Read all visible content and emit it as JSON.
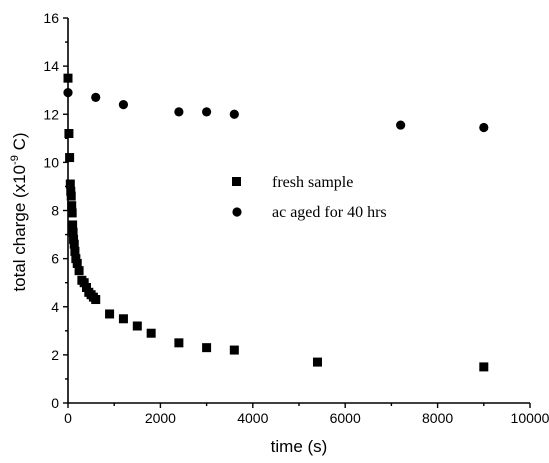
{
  "chart_data": {
    "type": "scatter",
    "xlabel": "time (s)",
    "ylabel_main": "total charge (x10",
    "ylabel_exp": "-9",
    "ylabel_unit": " C)",
    "xlim": [
      0,
      10000
    ],
    "ylim": [
      0,
      16
    ],
    "xticks": [
      0,
      2000,
      4000,
      6000,
      8000,
      10000
    ],
    "yticks": [
      0,
      2,
      4,
      6,
      8,
      10,
      12,
      14,
      16
    ],
    "grid": false,
    "legend_position": "center-right",
    "series": [
      {
        "name": "fresh sample",
        "marker": "square",
        "color": "#000000",
        "points": [
          [
            0,
            13.5
          ],
          [
            20,
            11.2
          ],
          [
            35,
            10.2
          ],
          [
            50,
            9.1
          ],
          [
            60,
            8.8
          ],
          [
            70,
            8.6
          ],
          [
            80,
            8.2
          ],
          [
            90,
            7.9
          ],
          [
            100,
            7.4
          ],
          [
            110,
            7.1
          ],
          [
            120,
            6.8
          ],
          [
            135,
            6.6
          ],
          [
            150,
            6.3
          ],
          [
            170,
            6.0
          ],
          [
            200,
            5.8
          ],
          [
            240,
            5.5
          ],
          [
            300,
            5.1
          ],
          [
            350,
            5.0
          ],
          [
            400,
            4.8
          ],
          [
            450,
            4.6
          ],
          [
            500,
            4.5
          ],
          [
            550,
            4.4
          ],
          [
            600,
            4.3
          ],
          [
            900,
            3.7
          ],
          [
            1200,
            3.5
          ],
          [
            1500,
            3.2
          ],
          [
            1800,
            2.9
          ],
          [
            2400,
            2.5
          ],
          [
            3000,
            2.3
          ],
          [
            3600,
            2.2
          ],
          [
            5400,
            1.7
          ],
          [
            9000,
            1.5
          ]
        ]
      },
      {
        "name": "ac aged for 40 hrs",
        "marker": "circle",
        "color": "#000000",
        "points": [
          [
            0,
            12.9
          ],
          [
            600,
            12.7
          ],
          [
            1200,
            12.4
          ],
          [
            2400,
            12.1
          ],
          [
            3000,
            12.1
          ],
          [
            3600,
            12.0
          ],
          [
            7200,
            11.55
          ],
          [
            9000,
            11.45
          ]
        ]
      }
    ]
  }
}
